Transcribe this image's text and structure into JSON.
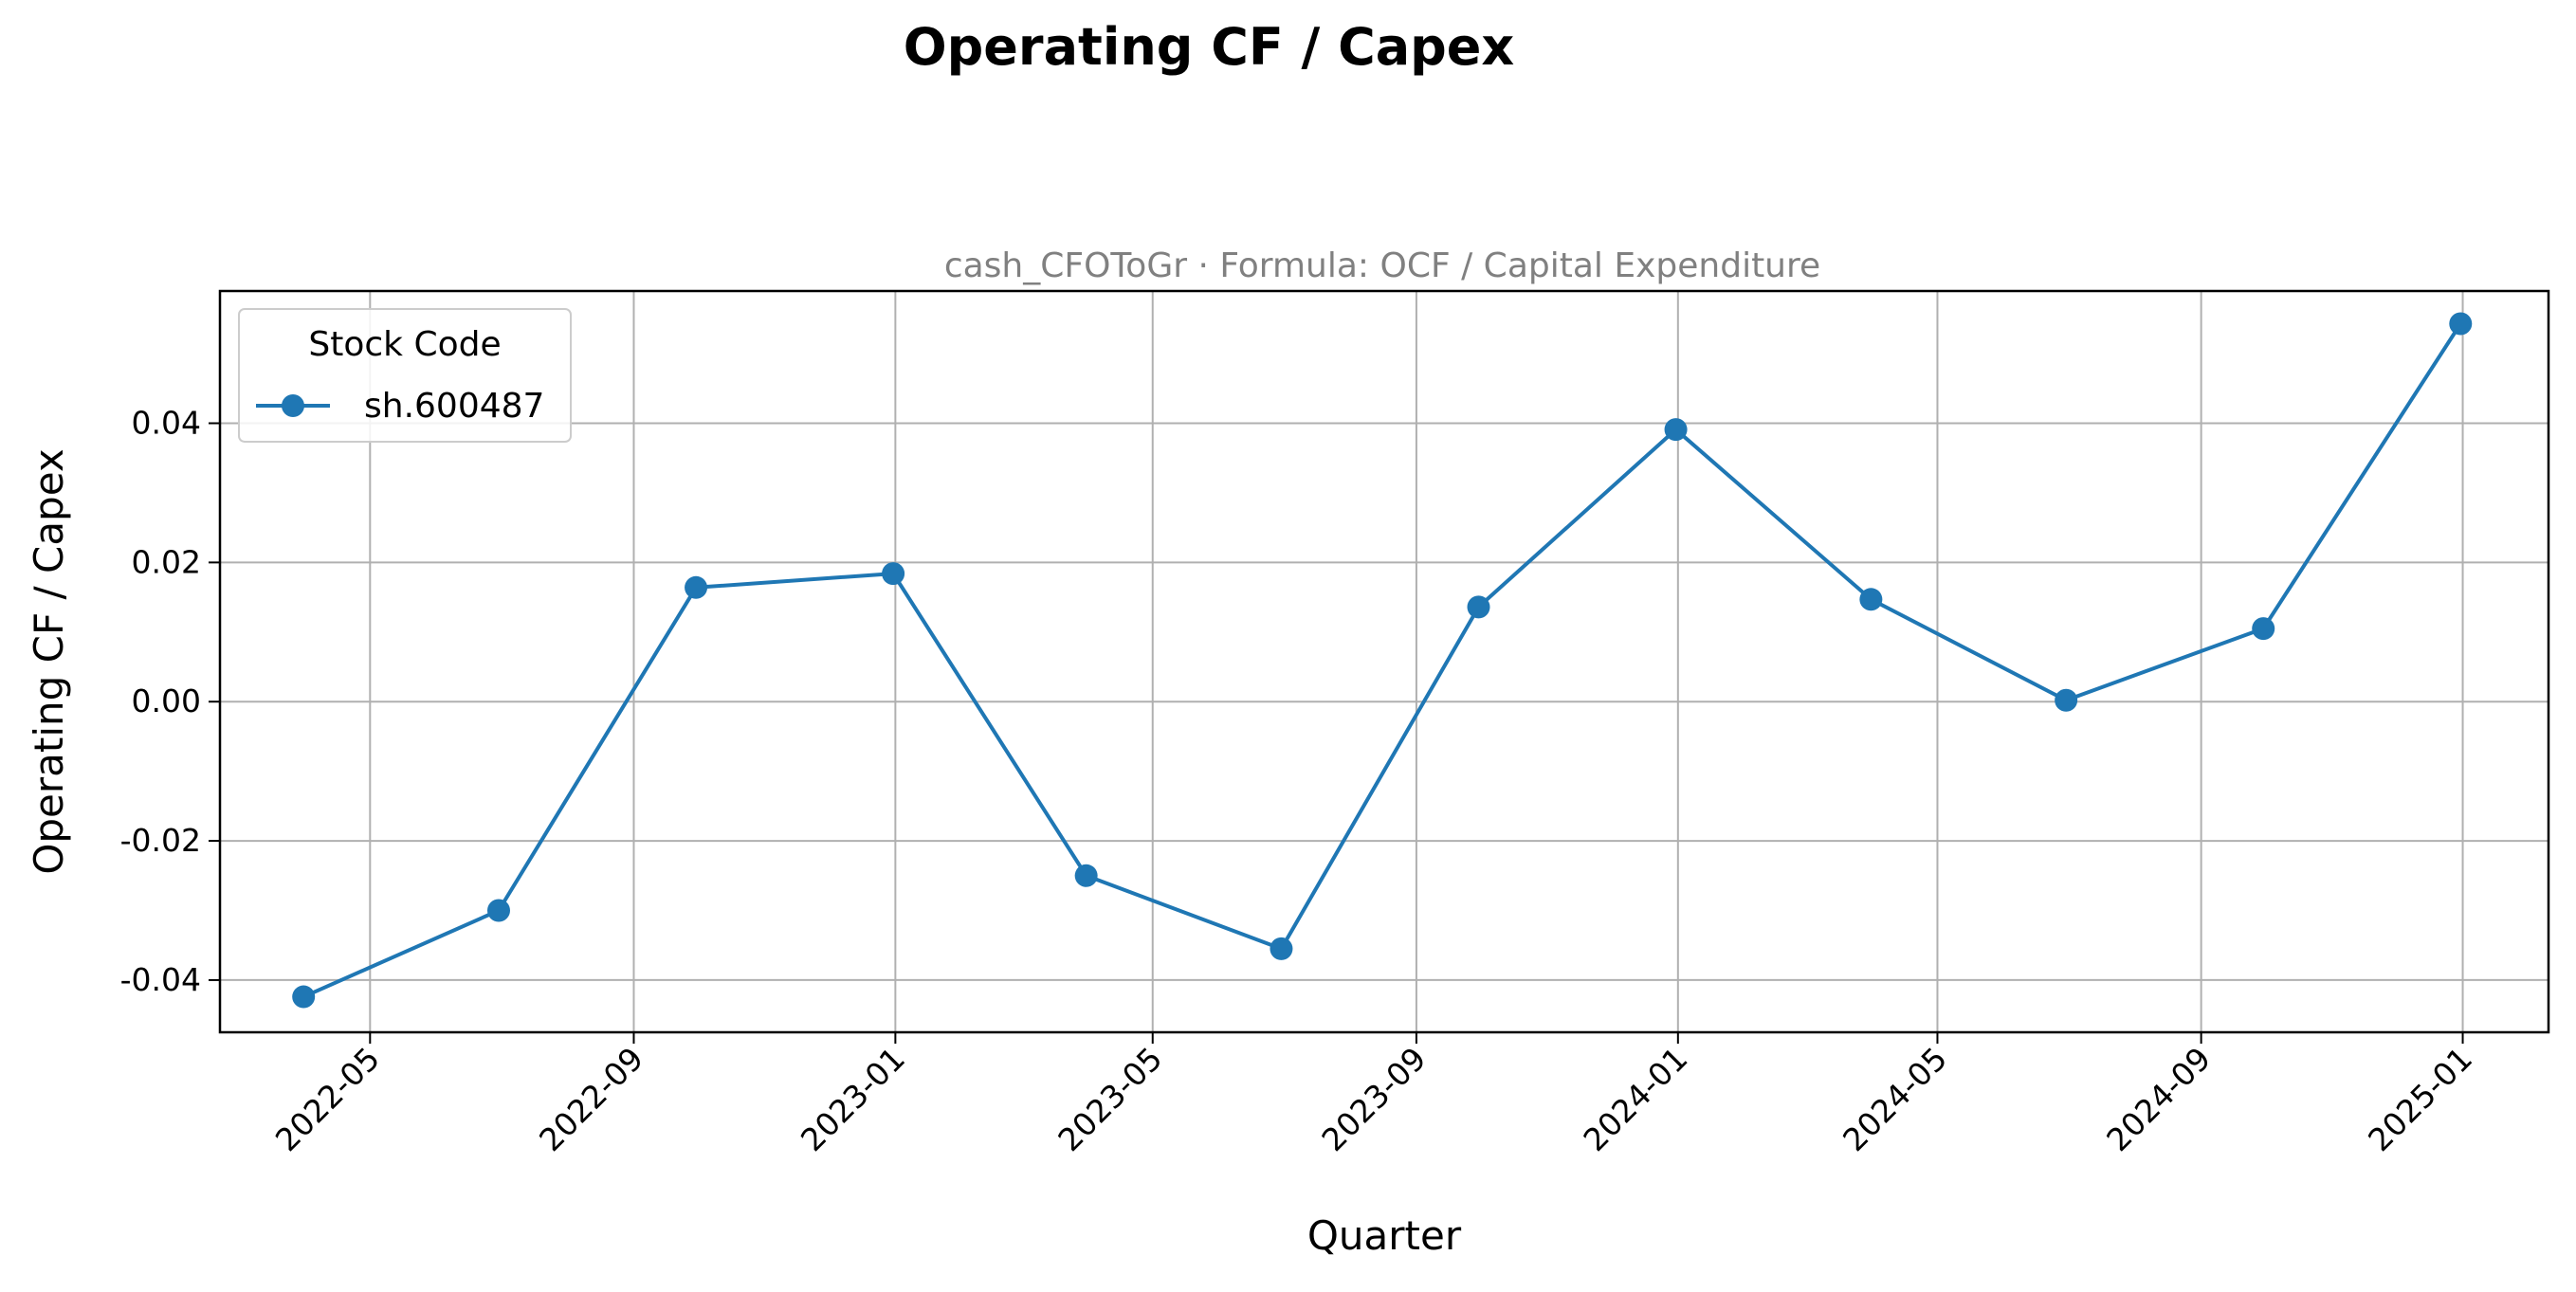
{
  "chart_data": {
    "type": "line",
    "title": "Operating CF / Capex",
    "subtitle": "cash_CFOToGr · Formula: OCF / Capital Expenditure",
    "xlabel": "Quarter",
    "ylabel": "Operating CF / Capex",
    "x_ticks": [
      "2022-05",
      "2022-09",
      "2023-01",
      "2023-05",
      "2023-09",
      "2024-01",
      "2024-05",
      "2024-09",
      "2025-01"
    ],
    "y_ticks": [
      "-0.04",
      "-0.02",
      "0.00",
      "0.02",
      "0.04"
    ],
    "ylim": [
      -0.0475,
      0.059
    ],
    "xlim": [
      "2022-02-20",
      "2025-02-10"
    ],
    "grid": true,
    "legend": {
      "title": "Stock Code",
      "placement": "top-left"
    },
    "series": [
      {
        "name": "sh.600487",
        "color": "#1f77b4",
        "marker": "circle",
        "x": [
          "2022-03-31",
          "2022-06-30",
          "2022-09-30",
          "2022-12-31",
          "2023-03-31",
          "2023-06-30",
          "2023-09-30",
          "2023-12-31",
          "2024-03-31",
          "2024-06-30",
          "2024-09-30",
          "2024-12-31"
        ],
        "values": [
          -0.0424,
          -0.03,
          0.0164,
          0.0184,
          -0.025,
          -0.0355,
          0.0136,
          0.0391,
          0.0147,
          0.0002,
          0.0105,
          0.0543
        ]
      }
    ]
  }
}
